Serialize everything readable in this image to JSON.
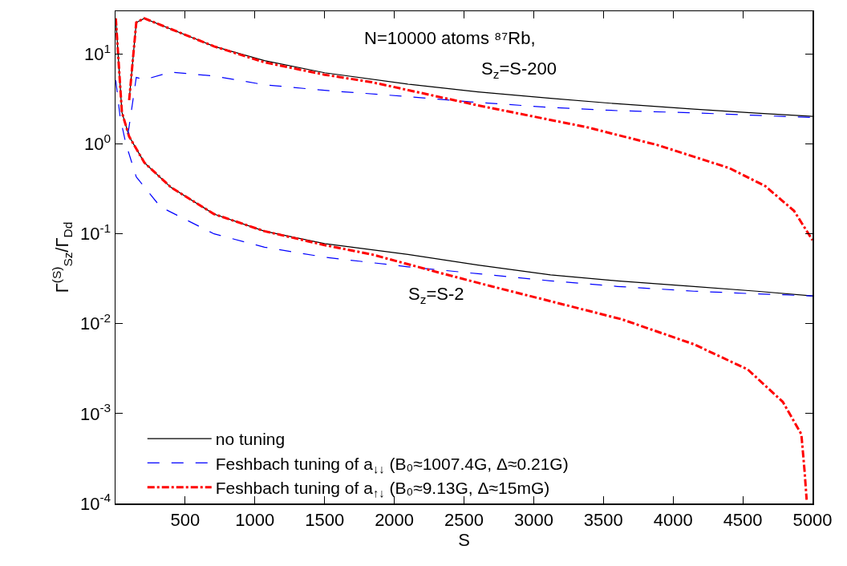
{
  "chart_data": {
    "type": "line",
    "xlabel": "S",
    "ylabel": "Γ$^{(S)}$$_{Sz}$/Γ$_{Dd}$",
    "annotations": [
      "N=10000 atoms ⁸⁷Rb,",
      "S$_{z}$=S-200",
      "S$_{z}$=S-2"
    ],
    "log": "y",
    "xlim": [
      0,
      5000
    ],
    "xticks": [
      500,
      1000,
      1500,
      2000,
      2500,
      3000,
      3500,
      4000,
      4500,
      5000
    ],
    "ylim": [
      0.0001,
      30
    ],
    "yticks": [
      {
        "value": 0.0001,
        "label": "10$^{-4}$"
      },
      {
        "value": 0.001,
        "label": "10$^{-3}$"
      },
      {
        "value": 0.01,
        "label": "10$^{-2}$"
      },
      {
        "value": 0.1,
        "label": "10$^{-1}$"
      },
      {
        "value": 1,
        "label": "10$^{0}$"
      },
      {
        "value": 10,
        "label": "10$^{1}$"
      }
    ],
    "grid": false,
    "legend": "bottom left",
    "marker": "none",
    "series": [
      {
        "name": "no tuning",
        "color": "#000000",
        "line_style": "solid",
        "x": [
          2,
          46,
          98,
          207,
          397,
          707,
          1069,
          1500,
          2098,
          2600,
          3121,
          3600,
          4150,
          4600,
          5000
        ],
        "values": [
          25,
          2.25,
          1.21,
          0.62,
          0.33,
          0.166,
          0.107,
          0.078,
          0.059,
          0.045,
          0.035,
          0.03,
          0.026,
          0.023,
          0.0204
        ]
      },
      {
        "name": "Feshbach tuning of a$_{↓↓}$ (B₀≈1007.4G, Δ≈0.21G)",
        "color": "#0000ff",
        "line_style": "dashed",
        "x": [
          2,
          34,
          75,
          149,
          322,
          707,
          1069,
          1500,
          2098,
          2600,
          3121,
          3600,
          4150,
          4600,
          5000
        ],
        "values": [
          5.1,
          1.95,
          1.0,
          0.43,
          0.2,
          0.1,
          0.071,
          0.055,
          0.043,
          0.036,
          0.03,
          0.026,
          0.023,
          0.0215,
          0.0204
        ]
      },
      {
        "name": "Feshbach tuning of a$_{↑↓}$ (B₀≈9.13G, Δ≈15mG)",
        "color": "#ff0000",
        "line_style": "dashdot",
        "x": [
          2,
          46,
          98,
          207,
          397,
          707,
          1069,
          1500,
          1839,
          2351,
          2700,
          3121,
          3632,
          4150,
          4535,
          4787,
          4920,
          4943,
          4958
        ],
        "values": [
          25,
          2.25,
          1.21,
          0.62,
          0.33,
          0.166,
          0.107,
          0.075,
          0.059,
          0.036,
          0.026,
          0.0178,
          0.0112,
          0.0059,
          0.0031,
          0.00135,
          0.00059,
          0.00023,
          0.00011
        ]
      },
      {
        "color": "#000000",
        "line_style": "solid",
        "x": [
          98,
          149,
          207,
          397,
          707,
          1069,
          1500,
          2095,
          2600,
          3121,
          3600,
          4150,
          4600,
          5000
        ],
        "values": [
          3.07,
          22.5,
          25,
          19,
          12.2,
          8.45,
          6.2,
          4.64,
          3.8,
          3.22,
          2.8,
          2.44,
          2.2,
          2.03
        ]
      },
      {
        "color": "#0000ff",
        "line_style": "dashed",
        "x": [
          90,
          149,
          207,
          397,
          707,
          1069,
          1500,
          2095,
          2600,
          3121,
          3600,
          4150,
          4600,
          5000
        ],
        "values": [
          1.3,
          5.5,
          5.2,
          6.3,
          5.7,
          4.56,
          3.95,
          3.37,
          2.9,
          2.55,
          2.35,
          2.22,
          2.08,
          1.97
        ]
      },
      {
        "color": "#ff0000",
        "line_style": "dashdot",
        "x": [
          98,
          149,
          207,
          397,
          707,
          1069,
          1500,
          1839,
          2609,
          3379,
          3891,
          4402,
          4661,
          4868,
          5000
        ],
        "values": [
          3.07,
          22.5,
          25,
          19,
          12.2,
          8.1,
          5.9,
          4.87,
          2.67,
          1.54,
          0.97,
          0.54,
          0.34,
          0.18,
          0.085
        ]
      }
    ]
  }
}
